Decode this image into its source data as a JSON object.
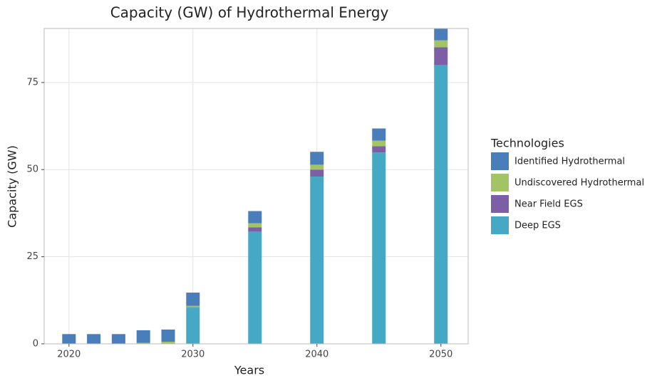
{
  "chart_data": {
    "type": "bar",
    "stacked": true,
    "title": "Capacity (GW) of Hydrothermal Energy",
    "x_label": "Years",
    "y_label": "Capacity (GW)",
    "legend_title": "Technologies",
    "legend": "right",
    "x": [
      2020,
      2022,
      2024,
      2026,
      2028,
      2030,
      2035,
      2040,
      2045,
      2050
    ],
    "series": [
      {
        "name": "Identified Hydrothermal",
        "color": "#4a7ebb",
        "values": [
          2.8,
          2.8,
          2.8,
          3.6,
          3.5,
          3.8,
          3.5,
          3.7,
          3.5,
          3.5
        ]
      },
      {
        "name": "Undiscovered Hydrothermal",
        "color": "#a2c465",
        "values": [
          0,
          0,
          0,
          0.3,
          0.6,
          0.4,
          1.2,
          1.4,
          1.6,
          2.0
        ]
      },
      {
        "name": "Near Field EGS",
        "color": "#7d5fa5",
        "values": [
          0,
          0,
          0,
          0,
          0,
          0.1,
          1.2,
          2.0,
          1.8,
          5.1
        ]
      },
      {
        "name": "Deep EGS",
        "color": "#45a9c5",
        "values": [
          0,
          0,
          0,
          0,
          0,
          10.4,
          32.2,
          48.0,
          54.9,
          80.0
        ]
      }
    ],
    "xlim": [
      2018,
      2052.2
    ],
    "xticks": [
      2020,
      2030,
      2040,
      2050
    ],
    "ylim": [
      0,
      90.5
    ],
    "yticks": [
      0,
      25,
      50,
      75
    ],
    "grid": true
  }
}
